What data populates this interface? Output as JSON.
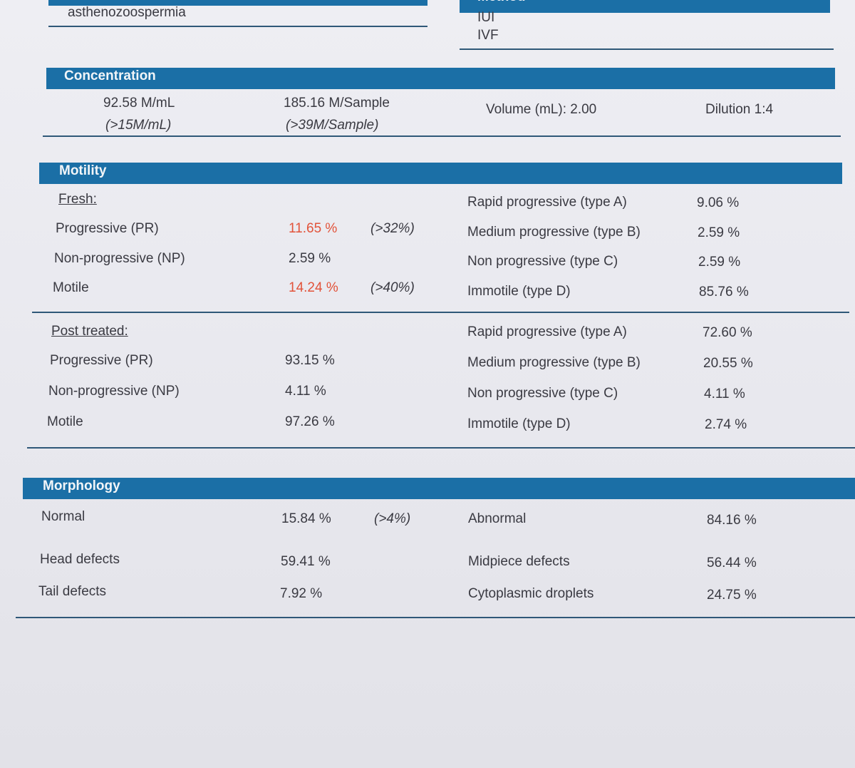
{
  "top": {
    "diagnosis": "asthenozoospermia",
    "method": {
      "title": "Method",
      "options": [
        "IUI",
        "IVF"
      ]
    }
  },
  "concentration": {
    "title": "Concentration",
    "cells": [
      {
        "value": "92.58 M/mL",
        "reference": "(>15M/mL)"
      },
      {
        "value": "185.16 M/Sample",
        "reference": "(>39M/Sample)"
      },
      {
        "value": "Volume (mL): 2.00"
      },
      {
        "value": "Dilution 1:4"
      }
    ]
  },
  "motility": {
    "title": "Motility",
    "groups": [
      {
        "label": "Fresh:",
        "rows": [
          {
            "name": "Progressive (PR)",
            "value": "11.65 %",
            "reference": "(>32%)",
            "flagged": true
          },
          {
            "name": "Non-progressive (NP)",
            "value": "2.59 %"
          },
          {
            "name": "Motile",
            "value": "14.24 %",
            "reference": "(>40%)",
            "flagged": true
          }
        ],
        "types": [
          {
            "name": "Rapid progressive (type A)",
            "value": "9.06 %"
          },
          {
            "name": "Medium progressive (type B)",
            "value": "2.59 %"
          },
          {
            "name": "Non progressive (type C)",
            "value": "2.59 %"
          },
          {
            "name": "Immotile (type D)",
            "value": "85.76 %"
          }
        ]
      },
      {
        "label": "Post treated:",
        "rows": [
          {
            "name": "Progressive (PR)",
            "value": "93.15 %"
          },
          {
            "name": "Non-progressive (NP)",
            "value": "4.11 %"
          },
          {
            "name": "Motile",
            "value": "97.26 %"
          }
        ],
        "types": [
          {
            "name": "Rapid progressive (type A)",
            "value": "72.60 %"
          },
          {
            "name": "Medium progressive (type B)",
            "value": "20.55 %"
          },
          {
            "name": "Non progressive (type C)",
            "value": "4.11 %"
          },
          {
            "name": "Immotile (type D)",
            "value": "2.74 %"
          }
        ]
      }
    ]
  },
  "morphology": {
    "title": "Morphology",
    "rows": [
      {
        "left": {
          "name": "Normal",
          "value": "15.84 %",
          "reference": "(>4%)"
        },
        "right": {
          "name": "Abnormal",
          "value": "84.16 %"
        }
      },
      {
        "left": {
          "name": "Head defects",
          "value": "59.41 %"
        },
        "right": {
          "name": "Midpiece defects",
          "value": "56.44 %"
        }
      },
      {
        "left": {
          "name": "Tail defects",
          "value": "7.92 %"
        },
        "right": {
          "name": "Cytoplasmic droplets",
          "value": "24.75 %"
        }
      }
    ]
  }
}
